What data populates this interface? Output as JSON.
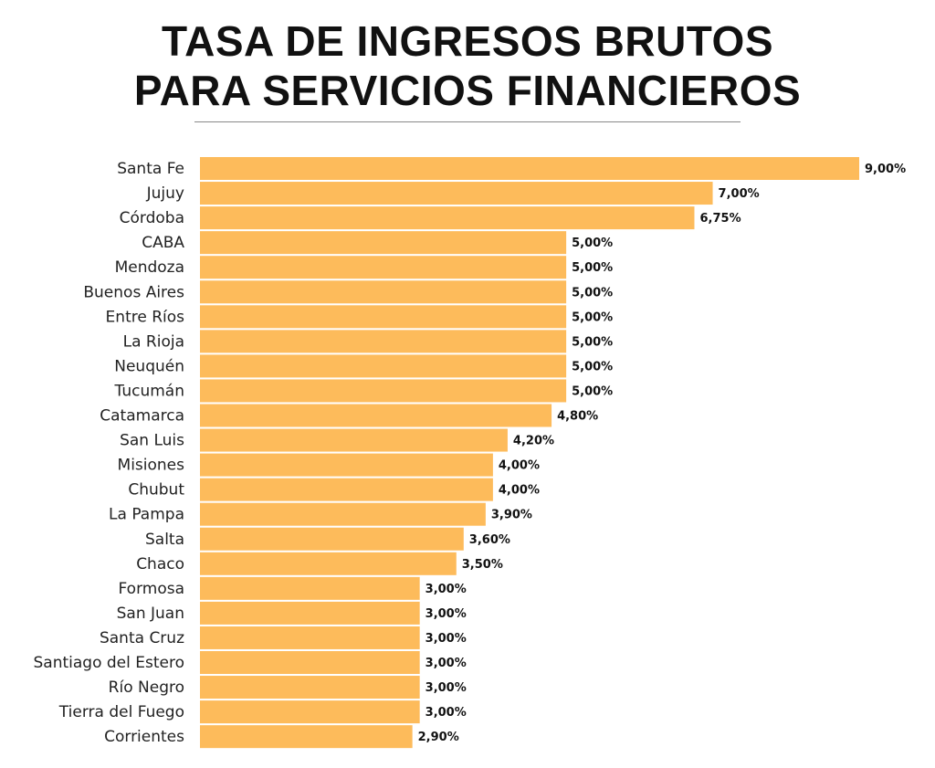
{
  "chart_data": {
    "type": "bar",
    "orientation": "horizontal",
    "title_lines": [
      "TASA DE INGRESOS BRUTOS",
      "PARA SERVICIOS FINANCIEROS"
    ],
    "categories": [
      "Santa Fe",
      "Jujuy",
      "Córdoba",
      "CABA",
      "Mendoza",
      "Buenos Aires",
      "Entre Ríos",
      "La Rioja",
      "Neuquén",
      "Tucumán",
      "Catamarca",
      "San Luis",
      "Misiones",
      "Chubut",
      "La Pampa",
      "Salta",
      "Chaco",
      "Formosa",
      "San Juan",
      "Santa Cruz",
      "Santiago del Estero",
      "Río Negro",
      "Tierra del Fuego",
      "Corrientes"
    ],
    "values": [
      9.0,
      7.0,
      6.75,
      5.0,
      5.0,
      5.0,
      5.0,
      5.0,
      5.0,
      5.0,
      4.8,
      4.2,
      4.0,
      4.0,
      3.9,
      3.6,
      3.5,
      3.0,
      3.0,
      3.0,
      3.0,
      3.0,
      3.0,
      2.9
    ],
    "labels": [
      "9,00%",
      "7,00%",
      "6,75%",
      "5,00%",
      "5,00%",
      "5,00%",
      "5,00%",
      "5,00%",
      "5,00%",
      "5,00%",
      "4,80%",
      "4,20%",
      "4,00%",
      "4,00%",
      "3,90%",
      "3,60%",
      "3,50%",
      "3,00%",
      "3,00%",
      "3,00%",
      "3,00%",
      "3,00%",
      "3,00%",
      "2,90%"
    ],
    "xlim": [
      0,
      9
    ],
    "grid": false,
    "bar_color": "#FDBB5B"
  }
}
